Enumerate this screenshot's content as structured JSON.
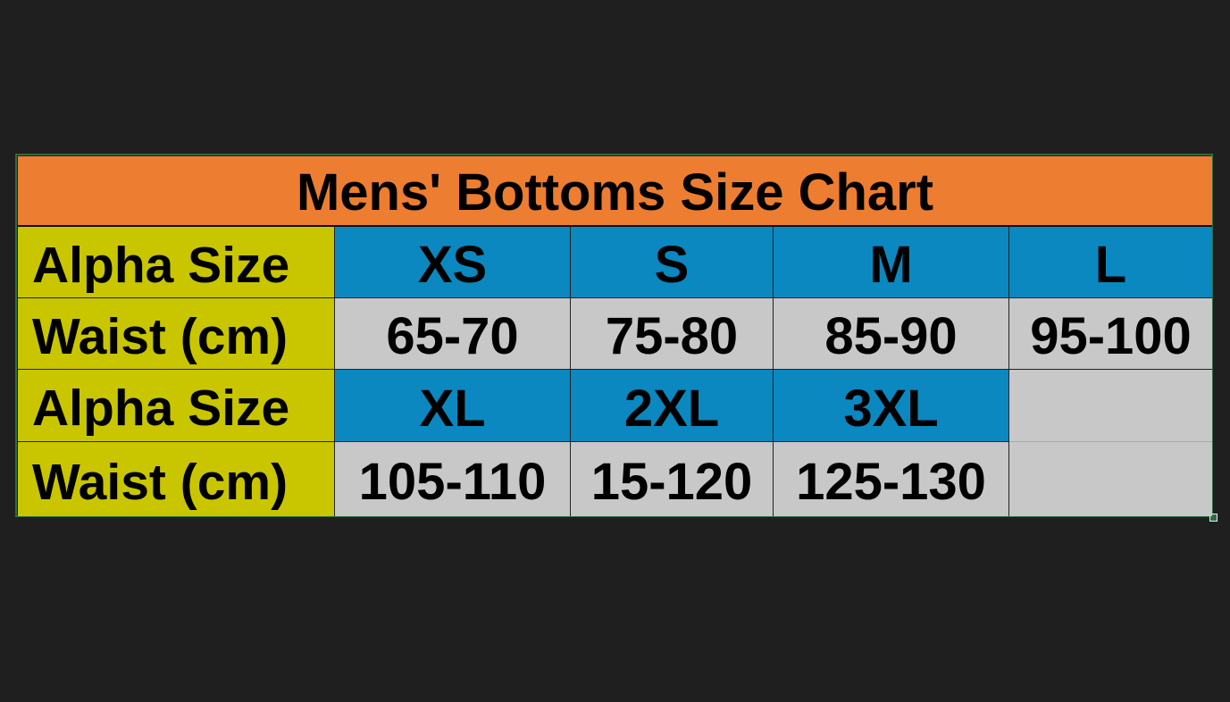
{
  "title": "Mens' Bottoms Size Chart",
  "colors": {
    "title_bg": "#ed7d31",
    "label_bg": "#c9c600",
    "size_bg": "#0a88bf",
    "waist_bg": "#c8c8c8",
    "background": "#1f1f1f"
  },
  "rows": [
    {
      "label": "Alpha Size",
      "cells": [
        "XS",
        "S",
        "M",
        "L"
      ]
    },
    {
      "label": "Waist (cm)",
      "cells": [
        "65-70",
        "75-80",
        "85-90",
        "95-100"
      ]
    },
    {
      "label": "Alpha Size",
      "cells": [
        "XL",
        "2XL",
        "3XL",
        ""
      ]
    },
    {
      "label": "Waist (cm)",
      "cells": [
        "105-110",
        "15-120",
        "125-130",
        ""
      ]
    }
  ]
}
